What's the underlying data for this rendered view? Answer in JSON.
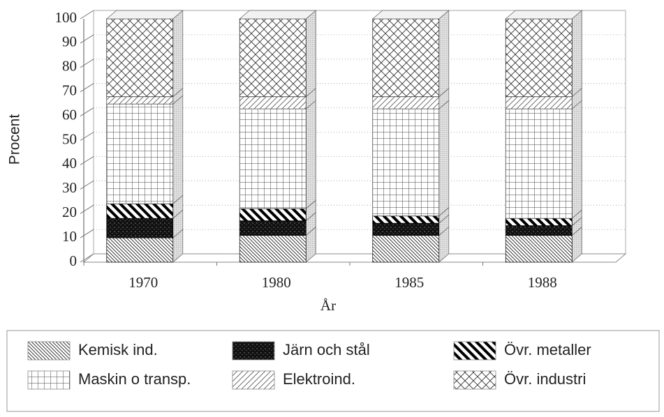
{
  "chart_data": {
    "type": "stacked-bar-3d",
    "y_label": "Procent",
    "x_label": "År",
    "categories": [
      "1970",
      "1980",
      "1985",
      "1988"
    ],
    "ylim": [
      0,
      100
    ],
    "yticks": [
      0,
      10,
      20,
      30,
      40,
      50,
      60,
      70,
      80,
      90,
      100
    ],
    "grid": true,
    "legend": "bottom",
    "series": [
      {
        "name": "Kemisk ind.",
        "color": "#222222",
        "pattern": "diagonal-fine",
        "values": [
          10,
          11,
          11,
          11
        ]
      },
      {
        "name": "Järn och stål",
        "color": "#111111",
        "pattern": "dark",
        "values": [
          8,
          6,
          5,
          4
        ]
      },
      {
        "name": "Övr. metaller",
        "color": "#000000",
        "pattern": "diagonal-thick",
        "values": [
          6,
          5,
          3,
          3
        ]
      },
      {
        "name": "Maskin o transp.",
        "color": "#444444",
        "pattern": "grid",
        "values": [
          41,
          41,
          44,
          45
        ]
      },
      {
        "name": "Elektroind.",
        "color": "#555555",
        "pattern": "diagonal-forward",
        "values": [
          3,
          5,
          5,
          5
        ]
      },
      {
        "name": "Övr. industri",
        "color": "#333333",
        "pattern": "crosshatch",
        "values": [
          32,
          32,
          32,
          32
        ]
      }
    ]
  }
}
